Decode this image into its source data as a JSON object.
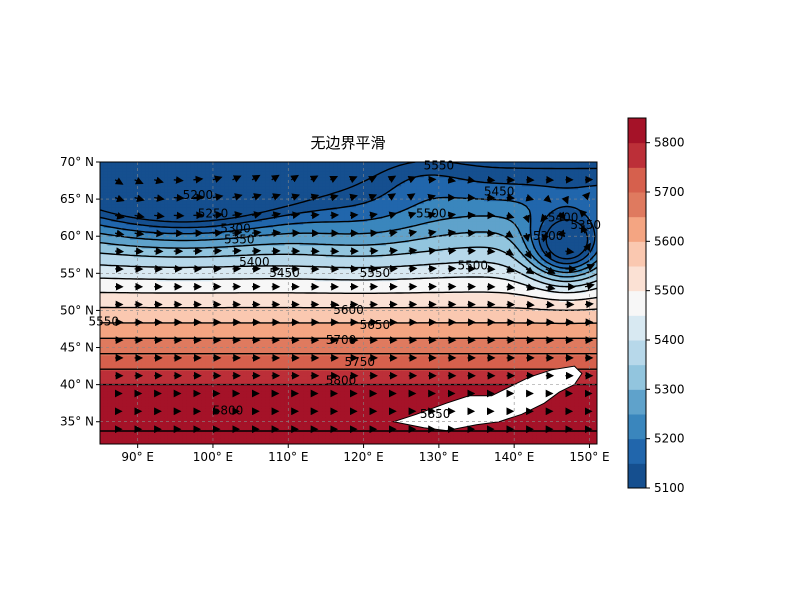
{
  "chart_data": {
    "type": "contourf",
    "title": "无边界平滑",
    "xlabel": "",
    "ylabel": "",
    "xlim": [
      85,
      151
    ],
    "ylim": [
      32,
      70
    ],
    "x_ticks": [
      {
        "value": 90,
        "label": "90° E"
      },
      {
        "value": 100,
        "label": "100° E"
      },
      {
        "value": 110,
        "label": "110° E"
      },
      {
        "value": 120,
        "label": "120° E"
      },
      {
        "value": 130,
        "label": "130° E"
      },
      {
        "value": 140,
        "label": "140° E"
      },
      {
        "value": 150,
        "label": "150° E"
      }
    ],
    "y_ticks": [
      {
        "value": 35,
        "label": "35° N"
      },
      {
        "value": 40,
        "label": "40° N"
      },
      {
        "value": 45,
        "label": "45° N"
      },
      {
        "value": 50,
        "label": "50° N"
      },
      {
        "value": 55,
        "label": "55° N"
      },
      {
        "value": 60,
        "label": "60° N"
      },
      {
        "value": 65,
        "label": "65° N"
      },
      {
        "value": 70,
        "label": "70° N"
      }
    ],
    "grid": true,
    "colorbar": {
      "range": [
        5100,
        5850
      ],
      "ticks": [
        5100,
        5200,
        5300,
        5400,
        5500,
        5600,
        5700,
        5800
      ],
      "levels": [
        5100,
        5150,
        5200,
        5250,
        5300,
        5350,
        5400,
        5450,
        5500,
        5550,
        5600,
        5650,
        5700,
        5750,
        5800,
        5850
      ],
      "colors": [
        "#154f8f",
        "#2166ac",
        "#3a86bd",
        "#5fa2cb",
        "#92c5de",
        "#b7d8ea",
        "#d8e9f2",
        "#f7f7f7",
        "#fbe1d4",
        "#fac8b0",
        "#f4a582",
        "#df7a5f",
        "#d6604d",
        "#bc2f38",
        "#a51228"
      ]
    },
    "contour_labels": [
      {
        "text": "5200",
        "lon": 98,
        "lat": 65
      },
      {
        "text": "5250",
        "lon": 100,
        "lat": 62.5
      },
      {
        "text": "5300",
        "lon": 103,
        "lat": 60.5
      },
      {
        "text": "5350",
        "lon": 103.5,
        "lat": 59
      },
      {
        "text": "5400",
        "lon": 105.5,
        "lat": 56
      },
      {
        "text": "5450",
        "lon": 109.5,
        "lat": 54.5
      },
      {
        "text": "5550",
        "lon": 121.5,
        "lat": 54.5
      },
      {
        "text": "5600",
        "lon": 118,
        "lat": 49.5
      },
      {
        "text": "5650",
        "lon": 121.5,
        "lat": 47.5
      },
      {
        "text": "5700",
        "lon": 117,
        "lat": 45.5
      },
      {
        "text": "5750",
        "lon": 119.5,
        "lat": 42.5
      },
      {
        "text": "5800",
        "lon": 117,
        "lat": 40
      },
      {
        "text": "5800",
        "lon": 102,
        "lat": 36
      },
      {
        "text": "5850",
        "lon": 129.5,
        "lat": 35.5
      },
      {
        "text": "5550",
        "lon": 130,
        "lat": 69
      },
      {
        "text": "5500",
        "lon": 129,
        "lat": 62.5
      },
      {
        "text": "5450",
        "lon": 138,
        "lat": 65.5
      },
      {
        "text": "5400",
        "lon": 146.5,
        "lat": 62
      },
      {
        "text": "5350",
        "lon": 149.5,
        "lat": 61
      },
      {
        "text": "5300",
        "lon": 144.5,
        "lat": 59.5
      },
      {
        "text": "5500",
        "lon": 134.5,
        "lat": 55.5
      },
      {
        "text": "5550",
        "lon": 85.5,
        "lat": 48
      }
    ],
    "field_description": "Geopotential height contours (levels 5100–5850, step 50) with wind vector arrows; low near 96E 70N, closed low near 147E 58N, highs >5800 south of 42N.",
    "vectors": true
  }
}
